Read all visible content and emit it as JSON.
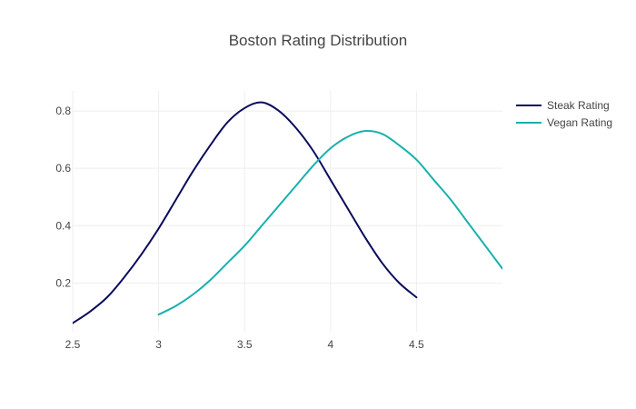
{
  "chart_data": {
    "type": "line",
    "title": "Boston Rating Distribution",
    "xlabel": "",
    "ylabel": "",
    "xlim": [
      2.5,
      5.0
    ],
    "ylim": [
      0.03,
      0.87
    ],
    "x_ticks": [
      2.5,
      3,
      3.5,
      4,
      4.5
    ],
    "x_tick_labels": [
      "2.5",
      "3",
      "3.5",
      "4",
      "4.5"
    ],
    "y_ticks": [
      0.2,
      0.4,
      0.6,
      0.8
    ],
    "y_tick_labels": [
      "0.2",
      "0.4",
      "0.6",
      "0.8"
    ],
    "grid": true,
    "legend_position": "top-right",
    "series": [
      {
        "name": "Steak Rating",
        "color": "#0b0b5c",
        "x": [
          2.5,
          2.6,
          2.7,
          2.8,
          2.9,
          3.0,
          3.1,
          3.2,
          3.3,
          3.4,
          3.5,
          3.6,
          3.7,
          3.8,
          3.9,
          4.0,
          4.1,
          4.2,
          4.3,
          4.4,
          4.5
        ],
        "y": [
          0.06,
          0.1,
          0.15,
          0.22,
          0.3,
          0.39,
          0.49,
          0.59,
          0.68,
          0.76,
          0.81,
          0.83,
          0.8,
          0.74,
          0.66,
          0.56,
          0.46,
          0.36,
          0.27,
          0.2,
          0.15
        ]
      },
      {
        "name": "Vegan Rating",
        "color": "#17b0ad",
        "x": [
          3.0,
          3.1,
          3.2,
          3.3,
          3.4,
          3.5,
          3.6,
          3.7,
          3.8,
          3.9,
          4.0,
          4.1,
          4.2,
          4.3,
          4.4,
          4.5,
          4.6,
          4.7,
          4.8,
          4.9,
          5.0
        ],
        "y": [
          0.09,
          0.12,
          0.16,
          0.21,
          0.27,
          0.33,
          0.4,
          0.47,
          0.54,
          0.61,
          0.67,
          0.71,
          0.73,
          0.72,
          0.68,
          0.63,
          0.56,
          0.49,
          0.41,
          0.33,
          0.25
        ]
      }
    ]
  }
}
